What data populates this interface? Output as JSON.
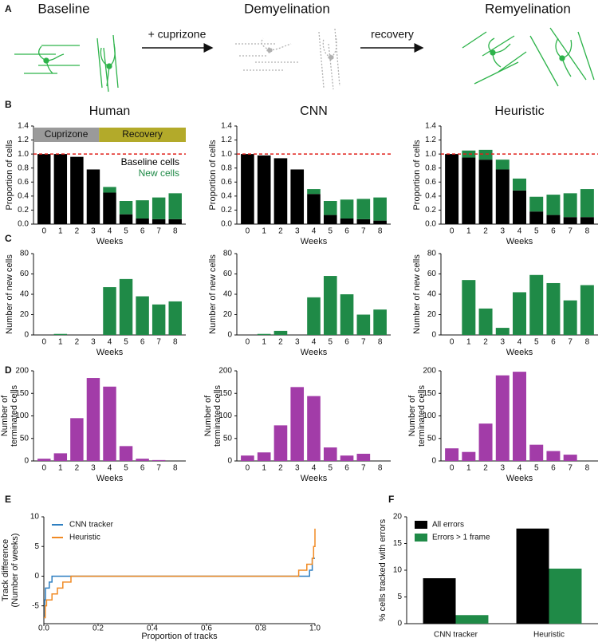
{
  "panel_labels": [
    "A",
    "B",
    "C",
    "D",
    "E",
    "F"
  ],
  "diagram": {
    "stages": [
      "Baseline",
      "Demyelination",
      "Remyelination"
    ],
    "arrows": [
      "+ cuprizone",
      "recovery"
    ]
  },
  "chart_data": [
    {
      "type": "bar",
      "title": "Human",
      "stacked": true,
      "xlabel": "Weeks",
      "ylabel": "Proportion of cells",
      "categories": [
        "0",
        "1",
        "2",
        "3",
        "4",
        "5",
        "6",
        "7",
        "8"
      ],
      "series": [
        {
          "name": "Baseline cells",
          "color": "#000000",
          "values": [
            1.0,
            1.0,
            0.96,
            0.78,
            0.45,
            0.14,
            0.08,
            0.07,
            0.07
          ]
        },
        {
          "name": "New cells",
          "color": "#1f8a47",
          "values": [
            0,
            0,
            0,
            0,
            0.08,
            0.19,
            0.26,
            0.31,
            0.37
          ]
        }
      ],
      "ylim": [
        0,
        1.4
      ],
      "yticks": [
        {
          "value": 0,
          "label": "0.0"
        },
        0.2,
        0.4,
        0.6,
        0.8,
        {
          "value": 1,
          "label": "1.0"
        },
        1.2,
        1.4
      ],
      "reference_line": {
        "value": 1,
        "color": "#e0201b"
      },
      "phases": [
        {
          "label": "Cuprizone",
          "color": "#9a9a9a"
        },
        {
          "label": "Recovery",
          "color": "#b3aa2a"
        }
      ],
      "legend": "text-right"
    },
    {
      "type": "bar",
      "title": "CNN",
      "stacked": true,
      "xlabel": "Weeks",
      "ylabel": "Proportion of cells",
      "categories": [
        "0",
        "1",
        "2",
        "3",
        "4",
        "5",
        "6",
        "7",
        "8"
      ],
      "series": [
        {
          "name": "Baseline cells",
          "color": "#000000",
          "values": [
            1.0,
            0.98,
            0.94,
            0.78,
            0.43,
            0.13,
            0.08,
            0.07,
            0.05
          ]
        },
        {
          "name": "New cells",
          "color": "#1f8a47",
          "values": [
            0,
            0,
            0,
            0,
            0.07,
            0.2,
            0.27,
            0.29,
            0.33
          ]
        }
      ],
      "ylim": [
        0,
        1.4
      ],
      "yticks": [
        {
          "value": 0,
          "label": "0.0"
        },
        0.2,
        0.4,
        0.6,
        0.8,
        {
          "value": 1,
          "label": "1.0"
        },
        1.2,
        1.4
      ],
      "reference_line": {
        "value": 1,
        "color": "#e0201b"
      }
    },
    {
      "type": "bar",
      "title": "Heuristic",
      "stacked": true,
      "xlabel": "Weeks",
      "ylabel": "Proportion of cells",
      "categories": [
        "0",
        "1",
        "2",
        "3",
        "4",
        "5",
        "6",
        "7",
        "8"
      ],
      "series": [
        {
          "name": "Baseline cells",
          "color": "#000000",
          "values": [
            1.0,
            0.95,
            0.92,
            0.78,
            0.48,
            0.18,
            0.13,
            0.1,
            0.1
          ]
        },
        {
          "name": "New cells",
          "color": "#1f8a47",
          "values": [
            0,
            0.1,
            0.14,
            0.14,
            0.17,
            0.21,
            0.29,
            0.34,
            0.4
          ]
        }
      ],
      "ylim": [
        0,
        1.4
      ],
      "yticks": [
        {
          "value": 0,
          "label": "0.0"
        },
        0.2,
        0.4,
        0.6,
        0.8,
        {
          "value": 1,
          "label": "1.0"
        },
        1.2,
        1.4
      ],
      "reference_line": {
        "value": 1,
        "color": "#e0201b"
      }
    },
    {
      "type": "bar",
      "xlabel": "Weeks",
      "ylabel": "Number of new cells",
      "color": "#1f8a47",
      "categories": [
        "0",
        "1",
        "2",
        "3",
        "4",
        "5",
        "6",
        "7",
        "8"
      ],
      "values": [
        0,
        1,
        0,
        0,
        47,
        55,
        38,
        30,
        33
      ],
      "ylim": [
        0,
        80
      ],
      "yticks": [
        0,
        20,
        40,
        60,
        80
      ]
    },
    {
      "type": "bar",
      "xlabel": "Weeks",
      "ylabel": "Number of new cells",
      "color": "#1f8a47",
      "categories": [
        "0",
        "1",
        "2",
        "3",
        "4",
        "5",
        "6",
        "7",
        "8"
      ],
      "values": [
        0,
        1,
        4,
        0,
        37,
        58,
        40,
        20,
        25
      ],
      "ylim": [
        0,
        80
      ],
      "yticks": [
        0,
        20,
        40,
        60,
        80
      ]
    },
    {
      "type": "bar",
      "xlabel": "Weeks",
      "ylabel": "Number of new cells",
      "color": "#1f8a47",
      "categories": [
        "0",
        "1",
        "2",
        "3",
        "4",
        "5",
        "6",
        "7",
        "8"
      ],
      "values": [
        0,
        54,
        26,
        7,
        42,
        59,
        51,
        34,
        49
      ],
      "ylim": [
        0,
        80
      ],
      "yticks": [
        0,
        20,
        40,
        60,
        80
      ]
    },
    {
      "type": "bar",
      "xlabel": "Weeks",
      "ylabel": [
        "Number of",
        "terminated cells"
      ],
      "color": "#a23ca8",
      "categories": [
        "0",
        "1",
        "2",
        "3",
        "4",
        "5",
        "6",
        "7",
        "8"
      ],
      "values": [
        5,
        17,
        95,
        184,
        165,
        33,
        5,
        2,
        0
      ],
      "ylim": [
        0,
        200
      ],
      "yticks": [
        0,
        50,
        100,
        150,
        200
      ]
    },
    {
      "type": "bar",
      "xlabel": "Weeks",
      "ylabel": [
        "Number of",
        "terminated cells"
      ],
      "color": "#a23ca8",
      "categories": [
        "0",
        "1",
        "2",
        "3",
        "4",
        "5",
        "6",
        "7",
        "8"
      ],
      "values": [
        12,
        19,
        79,
        164,
        144,
        30,
        12,
        16,
        0
      ],
      "ylim": [
        0,
        200
      ],
      "yticks": [
        0,
        50,
        100,
        150,
        200
      ]
    },
    {
      "type": "bar",
      "xlabel": "Weeks",
      "ylabel": [
        "Number of",
        "terminated cells"
      ],
      "color": "#a23ca8",
      "categories": [
        "0",
        "1",
        "2",
        "3",
        "4",
        "5",
        "6",
        "7",
        "8"
      ],
      "values": [
        28,
        20,
        83,
        190,
        198,
        36,
        22,
        14,
        0
      ],
      "ylim": [
        0,
        200
      ],
      "yticks": [
        0,
        50,
        100,
        150,
        200
      ]
    },
    {
      "type": "line",
      "xlabel": "Proportion of tracks",
      "ylabel": [
        "Track difference",
        "(Number of weeks)"
      ],
      "series": [
        {
          "name": "CNN tracker",
          "color": "#2e7fc1",
          "x": [
            0,
            0.003,
            0.003,
            0.006,
            0.006,
            0.02,
            0.02,
            0.03,
            0.03,
            0.11,
            0.98,
            0.98,
            0.99,
            0.99,
            1.0
          ],
          "values": [
            -7,
            -7,
            -4,
            -4,
            -2,
            -2,
            -1,
            -1,
            0,
            0,
            0,
            1,
            1,
            3,
            3
          ]
        },
        {
          "name": "Heuristic",
          "color": "#f08a24",
          "x": [
            0,
            0.005,
            0.005,
            0.01,
            0.01,
            0.03,
            0.03,
            0.05,
            0.05,
            0.07,
            0.07,
            0.1,
            0.1,
            0.94,
            0.94,
            0.97,
            0.97,
            0.99,
            0.99,
            0.995,
            0.995,
            1.0,
            1.0
          ],
          "values": [
            -7,
            -7,
            -5,
            -5,
            -4,
            -4,
            -3,
            -3,
            -2,
            -2,
            -1,
            -1,
            0,
            0,
            1,
            1,
            2,
            2,
            3,
            3,
            5,
            5,
            8
          ]
        }
      ],
      "xlim": [
        0,
        1
      ],
      "xticks": [
        {
          "value": 0,
          "label": "0.0"
        },
        0.2,
        0.4,
        0.6,
        0.8,
        {
          "value": 1,
          "label": "1.0"
        }
      ],
      "ylim": [
        -8,
        10
      ],
      "yticks": [
        -5,
        0,
        5,
        10
      ],
      "legend": "upper left"
    },
    {
      "type": "bar",
      "ylabel": "% cells tracked with errors",
      "categories": [
        "CNN tracker",
        "Heuristic"
      ],
      "series": [
        {
          "name": "All errors",
          "color": "#000000",
          "values": [
            8.5,
            17.8
          ]
        },
        {
          "name": "Errors > 1 frame",
          "color": "#1f8a47",
          "values": [
            1.6,
            10.3
          ]
        }
      ],
      "ylim": [
        0,
        20
      ],
      "yticks": [
        0,
        5,
        10,
        15,
        20
      ],
      "legend": "upper left"
    }
  ]
}
